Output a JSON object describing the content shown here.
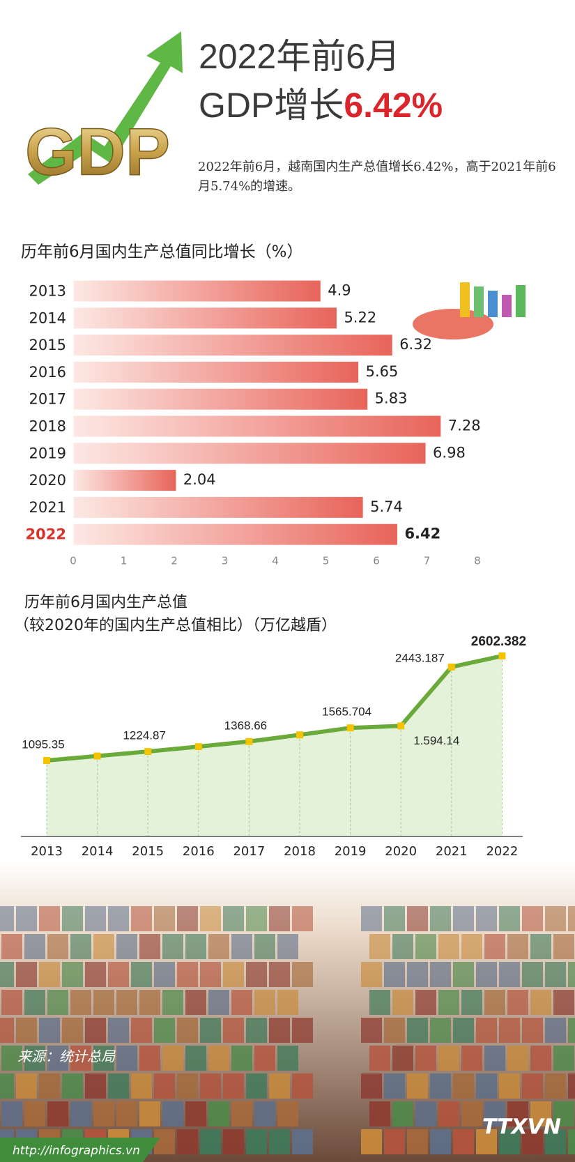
{
  "header": {
    "logo_text": "GDP",
    "title_line1": "2022年前6月",
    "title_line2": "GDP增长",
    "title_highlight": "6.42%",
    "description": "2022年前6月，越南国内生产总值增长6.42%，高于2021年前6月5.74%的增速。"
  },
  "chart_data": [
    {
      "type": "bar",
      "orientation": "horizontal",
      "title": "历年前6月国内生产总值同比增长（%）",
      "categories": [
        "2013",
        "2014",
        "2015",
        "2016",
        "2017",
        "2018",
        "2019",
        "2020",
        "2021",
        "2022"
      ],
      "values": [
        4.9,
        5.22,
        6.32,
        5.65,
        5.83,
        7.28,
        6.98,
        2.04,
        5.74,
        6.42
      ],
      "color": "#e8645a",
      "highlight_category": "2022",
      "highlight_color": "#d9342b",
      "xlim": [
        0,
        8
      ],
      "xticks": [
        0,
        1,
        2,
        3,
        4,
        5,
        6,
        7,
        8
      ]
    },
    {
      "type": "line",
      "title": "历年前6月国内生产总值",
      "subtitle": "（较2020年的国内生产总值相比）（万亿越盾）",
      "categories": [
        "2013",
        "2014",
        "2015",
        "2016",
        "2017",
        "2018",
        "2019",
        "2020",
        "2021",
        "2022"
      ],
      "values": [
        1095.35,
        1160,
        1224.87,
        1295,
        1368.66,
        1465,
        1565.704,
        1594.14,
        2443.187,
        2602.382
      ],
      "value_labels": [
        "1095.35",
        null,
        "1224.87",
        null,
        "1368.66",
        null,
        "1565.704",
        "1.594.14",
        "2443.187",
        "2602.382"
      ],
      "color": "#6aaa3a",
      "marker_color": "#f5c400",
      "fill_color": "#dcefd0",
      "highlight_category": "2022"
    }
  ],
  "footer": {
    "source": "来源：统计总局",
    "url": "http://infographics.vn",
    "agency": "TTXVN"
  }
}
